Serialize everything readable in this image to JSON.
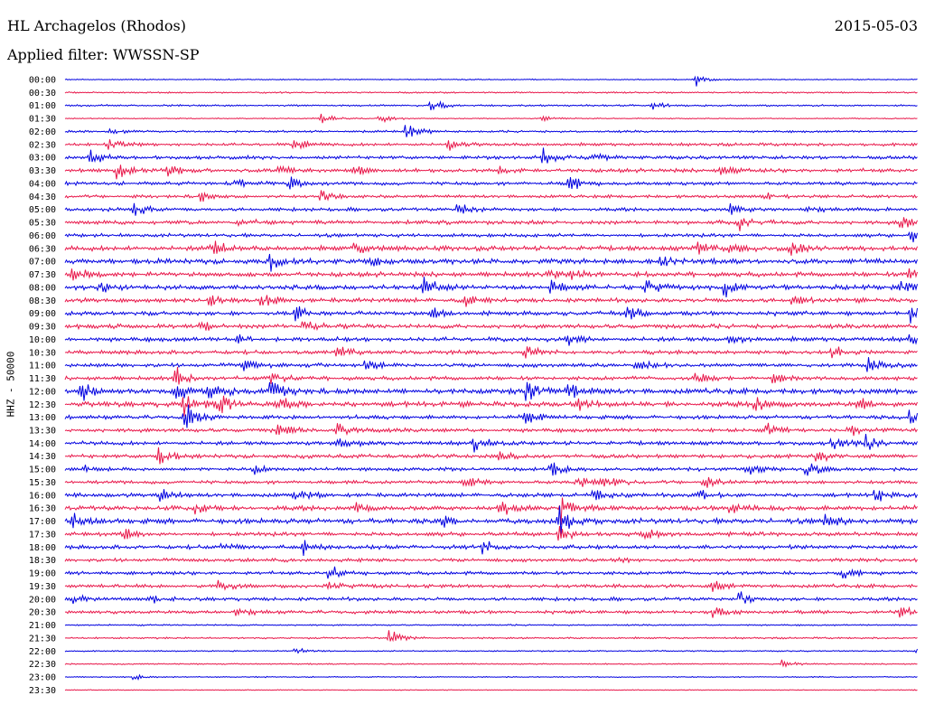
{
  "header": {
    "station": "HL Archagelos (Rhodos)",
    "date": "2015-05-03",
    "filter": "Applied filter: WWSSN-SP"
  },
  "chart_data": {
    "type": "helicorder",
    "ylabel": "HHZ - 50000",
    "row_labels": [
      "00:00",
      "00:30",
      "01:00",
      "01:30",
      "02:00",
      "02:30",
      "03:00",
      "03:30",
      "04:00",
      "04:30",
      "05:00",
      "05:30",
      "06:00",
      "06:30",
      "07:00",
      "07:30",
      "08:00",
      "08:30",
      "09:00",
      "09:30",
      "10:00",
      "10:30",
      "11:00",
      "11:30",
      "12:00",
      "12:30",
      "13:00",
      "13:30",
      "14:00",
      "14:30",
      "15:00",
      "15:30",
      "16:00",
      "16:30",
      "17:00",
      "17:30",
      "18:00",
      "18:30",
      "19:00",
      "19:30",
      "20:00",
      "20:30",
      "21:00",
      "21:30",
      "22:00",
      "22:30",
      "23:00",
      "23:30"
    ],
    "colors": [
      "#0000e0",
      "#e8174a"
    ],
    "noise_level": [
      0.5,
      0.7,
      0.8,
      0.5,
      1.0,
      1.4,
      1.6,
      1.8,
      1.6,
      1.4,
      1.6,
      1.8,
      1.6,
      2.2,
      2.4,
      2.2,
      2.2,
      2.0,
      2.0,
      2.0,
      2.0,
      1.8,
      1.8,
      1.8,
      2.4,
      2.4,
      1.8,
      1.8,
      1.8,
      1.8,
      1.6,
      1.6,
      1.8,
      2.2,
      2.4,
      1.8,
      1.8,
      1.6,
      1.6,
      1.6,
      1.6,
      1.6,
      0.7,
      0.8,
      0.6,
      0.6,
      0.5,
      0.4
    ],
    "events": [
      {
        "row": 0,
        "t": 0.74,
        "amp": 8
      },
      {
        "row": 2,
        "t": 0.43,
        "amp": 9
      },
      {
        "row": 2,
        "t": 0.69,
        "amp": 5
      },
      {
        "row": 3,
        "t": 0.3,
        "amp": 8
      },
      {
        "row": 3,
        "t": 0.37,
        "amp": 7
      },
      {
        "row": 3,
        "t": 0.56,
        "amp": 4
      },
      {
        "row": 4,
        "t": 0.05,
        "amp": 4
      },
      {
        "row": 4,
        "t": 0.4,
        "amp": 12
      },
      {
        "row": 5,
        "t": 0.05,
        "amp": 9
      },
      {
        "row": 5,
        "t": 0.27,
        "amp": 9
      },
      {
        "row": 5,
        "t": 0.45,
        "amp": 8
      },
      {
        "row": 6,
        "t": 0.03,
        "amp": 9
      },
      {
        "row": 6,
        "t": 0.56,
        "amp": 12
      },
      {
        "row": 6,
        "t": 0.62,
        "amp": 6
      },
      {
        "row": 7,
        "t": 0.06,
        "amp": 12
      },
      {
        "row": 7,
        "t": 0.12,
        "amp": 7
      },
      {
        "row": 7,
        "t": 0.25,
        "amp": 8
      },
      {
        "row": 7,
        "t": 0.34,
        "amp": 7
      },
      {
        "row": 7,
        "t": 0.51,
        "amp": 7
      },
      {
        "row": 7,
        "t": 0.77,
        "amp": 8
      },
      {
        "row": 8,
        "t": 0.2,
        "amp": 9
      },
      {
        "row": 8,
        "t": 0.26,
        "amp": 13
      },
      {
        "row": 8,
        "t": 0.59,
        "amp": 12
      },
      {
        "row": 9,
        "t": 0.16,
        "amp": 8
      },
      {
        "row": 9,
        "t": 0.3,
        "amp": 7
      },
      {
        "row": 9,
        "t": 0.82,
        "amp": 7
      },
      {
        "row": 10,
        "t": 0.08,
        "amp": 11
      },
      {
        "row": 10,
        "t": 0.46,
        "amp": 11
      },
      {
        "row": 10,
        "t": 0.78,
        "amp": 10
      },
      {
        "row": 10,
        "t": 0.87,
        "amp": 5
      },
      {
        "row": 11,
        "t": 0.2,
        "amp": 6
      },
      {
        "row": 11,
        "t": 0.79,
        "amp": 10
      },
      {
        "row": 11,
        "t": 0.98,
        "amp": 12
      },
      {
        "row": 12,
        "t": 0.99,
        "amp": 12
      },
      {
        "row": 13,
        "t": 0.17,
        "amp": 13
      },
      {
        "row": 13,
        "t": 0.34,
        "amp": 7
      },
      {
        "row": 13,
        "t": 0.74,
        "amp": 9
      },
      {
        "row": 13,
        "t": 0.78,
        "amp": 8
      },
      {
        "row": 13,
        "t": 0.85,
        "amp": 10
      },
      {
        "row": 14,
        "t": 0.24,
        "amp": 11
      },
      {
        "row": 14,
        "t": 0.36,
        "amp": 7
      },
      {
        "row": 14,
        "t": 0.7,
        "amp": 9
      },
      {
        "row": 15,
        "t": 0.01,
        "amp": 12
      },
      {
        "row": 15,
        "t": 0.57,
        "amp": 9
      },
      {
        "row": 15,
        "t": 0.59,
        "amp": 8
      },
      {
        "row": 15,
        "t": 0.99,
        "amp": 9
      },
      {
        "row": 16,
        "t": 0.04,
        "amp": 9
      },
      {
        "row": 16,
        "t": 0.42,
        "amp": 13
      },
      {
        "row": 16,
        "t": 0.57,
        "amp": 10
      },
      {
        "row": 16,
        "t": 0.68,
        "amp": 12
      },
      {
        "row": 16,
        "t": 0.77,
        "amp": 14
      },
      {
        "row": 16,
        "t": 0.98,
        "amp": 12
      },
      {
        "row": 17,
        "t": 0.17,
        "amp": 8
      },
      {
        "row": 17,
        "t": 0.23,
        "amp": 9
      },
      {
        "row": 17,
        "t": 0.47,
        "amp": 8
      },
      {
        "row": 17,
        "t": 0.85,
        "amp": 8
      },
      {
        "row": 18,
        "t": 0.27,
        "amp": 9
      },
      {
        "row": 18,
        "t": 0.43,
        "amp": 9
      },
      {
        "row": 18,
        "t": 0.66,
        "amp": 11
      },
      {
        "row": 18,
        "t": 0.99,
        "amp": 14
      },
      {
        "row": 19,
        "t": 0.16,
        "amp": 8
      },
      {
        "row": 19,
        "t": 0.28,
        "amp": 9
      },
      {
        "row": 20,
        "t": 0.2,
        "amp": 8
      },
      {
        "row": 20,
        "t": 0.59,
        "amp": 9
      },
      {
        "row": 20,
        "t": 0.78,
        "amp": 7
      },
      {
        "row": 20,
        "t": 0.99,
        "amp": 8
      },
      {
        "row": 21,
        "t": 0.32,
        "amp": 9
      },
      {
        "row": 21,
        "t": 0.54,
        "amp": 8
      },
      {
        "row": 21,
        "t": 0.9,
        "amp": 8
      },
      {
        "row": 22,
        "t": 0.21,
        "amp": 9
      },
      {
        "row": 22,
        "t": 0.35,
        "amp": 8
      },
      {
        "row": 22,
        "t": 0.67,
        "amp": 11
      },
      {
        "row": 22,
        "t": 0.94,
        "amp": 10
      },
      {
        "row": 23,
        "t": 0.13,
        "amp": 15
      },
      {
        "row": 23,
        "t": 0.24,
        "amp": 8
      },
      {
        "row": 23,
        "t": 0.74,
        "amp": 9
      },
      {
        "row": 23,
        "t": 0.83,
        "amp": 8
      },
      {
        "row": 24,
        "t": 0.02,
        "amp": 12
      },
      {
        "row": 24,
        "t": 0.13,
        "amp": 14
      },
      {
        "row": 24,
        "t": 0.17,
        "amp": 16
      },
      {
        "row": 24,
        "t": 0.24,
        "amp": 16
      },
      {
        "row": 24,
        "t": 0.54,
        "amp": 16
      },
      {
        "row": 24,
        "t": 0.59,
        "amp": 12
      },
      {
        "row": 25,
        "t": 0.14,
        "amp": 18
      },
      {
        "row": 25,
        "t": 0.18,
        "amp": 16
      },
      {
        "row": 25,
        "t": 0.25,
        "amp": 12
      },
      {
        "row": 25,
        "t": 0.6,
        "amp": 10
      },
      {
        "row": 25,
        "t": 0.81,
        "amp": 10
      },
      {
        "row": 25,
        "t": 0.93,
        "amp": 9
      },
      {
        "row": 26,
        "t": 0.14,
        "amp": 20
      },
      {
        "row": 26,
        "t": 0.54,
        "amp": 10
      },
      {
        "row": 26,
        "t": 0.99,
        "amp": 10
      },
      {
        "row": 27,
        "t": 0.25,
        "amp": 10
      },
      {
        "row": 27,
        "t": 0.32,
        "amp": 8
      },
      {
        "row": 27,
        "t": 0.82,
        "amp": 9
      },
      {
        "row": 27,
        "t": 0.92,
        "amp": 8
      },
      {
        "row": 28,
        "t": 0.32,
        "amp": 9
      },
      {
        "row": 28,
        "t": 0.48,
        "amp": 10
      },
      {
        "row": 28,
        "t": 0.9,
        "amp": 10
      },
      {
        "row": 28,
        "t": 0.94,
        "amp": 10
      },
      {
        "row": 29,
        "t": 0.11,
        "amp": 12
      },
      {
        "row": 29,
        "t": 0.51,
        "amp": 6
      },
      {
        "row": 29,
        "t": 0.88,
        "amp": 10
      },
      {
        "row": 30,
        "t": 0.02,
        "amp": 7
      },
      {
        "row": 30,
        "t": 0.22,
        "amp": 7
      },
      {
        "row": 30,
        "t": 0.57,
        "amp": 10
      },
      {
        "row": 30,
        "t": 0.8,
        "amp": 10
      },
      {
        "row": 30,
        "t": 0.87,
        "amp": 12
      },
      {
        "row": 31,
        "t": 0.47,
        "amp": 8
      },
      {
        "row": 31,
        "t": 0.6,
        "amp": 10
      },
      {
        "row": 31,
        "t": 0.63,
        "amp": 10
      },
      {
        "row": 31,
        "t": 0.75,
        "amp": 8
      },
      {
        "row": 32,
        "t": 0.11,
        "amp": 9
      },
      {
        "row": 32,
        "t": 0.27,
        "amp": 9
      },
      {
        "row": 32,
        "t": 0.62,
        "amp": 8
      },
      {
        "row": 32,
        "t": 0.74,
        "amp": 10
      },
      {
        "row": 32,
        "t": 0.95,
        "amp": 8
      },
      {
        "row": 33,
        "t": 0.15,
        "amp": 8
      },
      {
        "row": 33,
        "t": 0.34,
        "amp": 8
      },
      {
        "row": 33,
        "t": 0.51,
        "amp": 10
      },
      {
        "row": 33,
        "t": 0.58,
        "amp": 22
      },
      {
        "row": 33,
        "t": 0.78,
        "amp": 10
      },
      {
        "row": 34,
        "t": 0.01,
        "amp": 10
      },
      {
        "row": 34,
        "t": 0.44,
        "amp": 9
      },
      {
        "row": 34,
        "t": 0.58,
        "amp": 20
      },
      {
        "row": 34,
        "t": 0.89,
        "amp": 9
      },
      {
        "row": 35,
        "t": 0.07,
        "amp": 8
      },
      {
        "row": 35,
        "t": 0.58,
        "amp": 15
      },
      {
        "row": 35,
        "t": 0.68,
        "amp": 12
      },
      {
        "row": 36,
        "t": 0.18,
        "amp": 7
      },
      {
        "row": 36,
        "t": 0.28,
        "amp": 10
      },
      {
        "row": 36,
        "t": 0.49,
        "amp": 9
      },
      {
        "row": 37,
        "t": 0.64,
        "amp": 7
      },
      {
        "row": 38,
        "t": 0.31,
        "amp": 9
      },
      {
        "row": 38,
        "t": 0.91,
        "amp": 9
      },
      {
        "row": 39,
        "t": 0.18,
        "amp": 8
      },
      {
        "row": 39,
        "t": 0.31,
        "amp": 8
      },
      {
        "row": 39,
        "t": 0.76,
        "amp": 8
      },
      {
        "row": 40,
        "t": 0.01,
        "amp": 6
      },
      {
        "row": 40,
        "t": 0.1,
        "amp": 8
      },
      {
        "row": 40,
        "t": 0.79,
        "amp": 10
      },
      {
        "row": 41,
        "t": 0.2,
        "amp": 8
      },
      {
        "row": 41,
        "t": 0.76,
        "amp": 8
      },
      {
        "row": 41,
        "t": 0.98,
        "amp": 10
      },
      {
        "row": 43,
        "t": 0.38,
        "amp": 11
      },
      {
        "row": 44,
        "t": 0.27,
        "amp": 4
      },
      {
        "row": 44,
        "t": 1.0,
        "amp": 8
      },
      {
        "row": 45,
        "t": 0.84,
        "amp": 6
      },
      {
        "row": 46,
        "t": 0.08,
        "amp": 4
      }
    ]
  }
}
